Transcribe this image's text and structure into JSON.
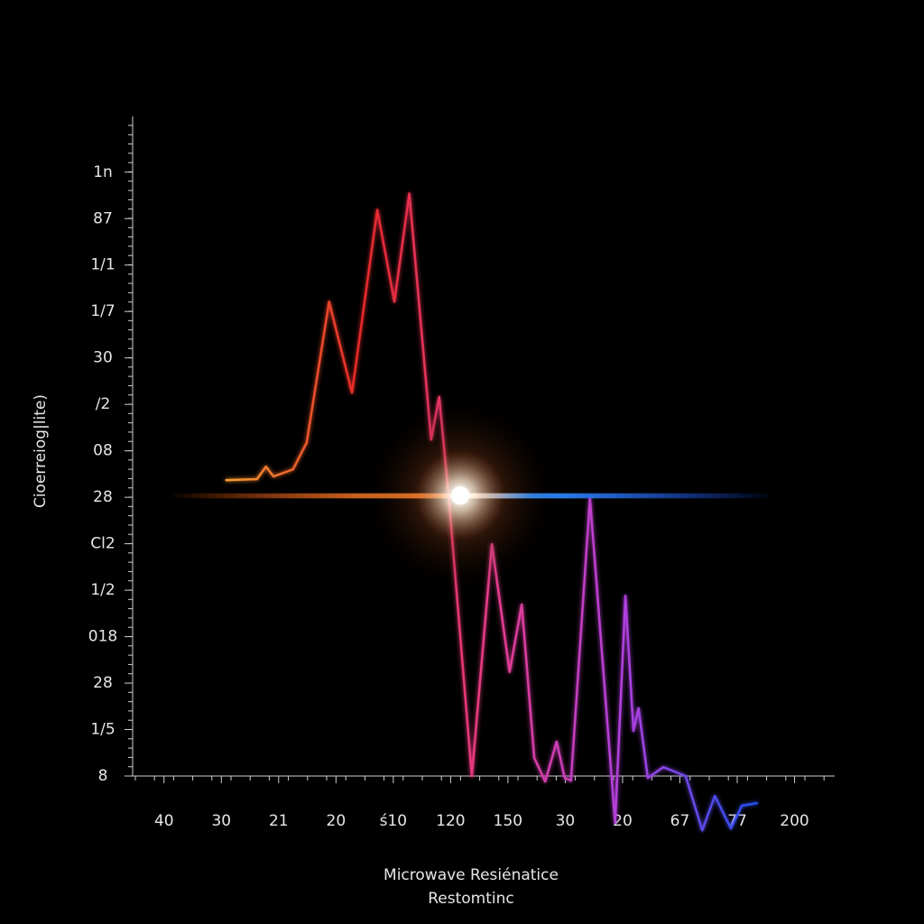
{
  "chart_data": {
    "type": "line",
    "y_label": "Cioerreiog|lite)",
    "x_label": "Microwave Resiénatice",
    "x_label_2": "Restomtinc",
    "xlim": [
      -0.5,
      11.7
    ],
    "ylim": [
      0,
      14.2
    ],
    "xticks": [
      {
        "value": 0,
        "label": "40"
      },
      {
        "value": 1,
        "label": "30"
      },
      {
        "value": 2,
        "label": "21"
      },
      {
        "value": 3,
        "label": "20"
      },
      {
        "value": 4,
        "label": "ś10"
      },
      {
        "value": 5,
        "label": "120"
      },
      {
        "value": 6,
        "label": "150"
      },
      {
        "value": 7,
        "label": "30"
      },
      {
        "value": 8,
        "label": "20"
      },
      {
        "value": 9,
        "label": "67"
      },
      {
        "value": 10,
        "label": "77"
      },
      {
        "value": 11,
        "label": "200"
      }
    ],
    "yticks": [
      {
        "value": 0,
        "label": "8"
      },
      {
        "value": 1,
        "label": "1/5"
      },
      {
        "value": 2,
        "label": "28"
      },
      {
        "value": 3,
        "label": "018"
      },
      {
        "value": 4,
        "label": "1/2"
      },
      {
        "value": 5,
        "label": "Cl2"
      },
      {
        "value": 6,
        "label": "28"
      },
      {
        "value": 7,
        "label": "08"
      },
      {
        "value": 8,
        "label": "/2"
      },
      {
        "value": 9,
        "label": "30"
      },
      {
        "value": 10,
        "label": "1/7"
      },
      {
        "value": 11,
        "label": "1/1"
      },
      {
        "value": 12,
        "label": "87"
      },
      {
        "value": 13,
        "label": "1n"
      }
    ],
    "colors": [
      "#f5a030",
      "#e82828",
      "#e83c8c",
      "#b040e0",
      "#2050f0"
    ],
    "x": [
      1.07,
      1.62,
      1.78,
      1.91,
      2.25,
      2.49,
      2.88,
      3.28,
      3.72,
      4.02,
      4.28,
      4.66,
      4.8,
      4.96,
      5.37,
      5.72,
      6.03,
      6.24,
      6.46,
      6.65,
      6.85,
      6.99,
      7.1,
      7.43,
      7.87,
      8.05,
      8.19,
      8.28,
      8.44,
      8.71,
      9.1,
      9.39,
      9.61,
      9.89,
      10.08,
      10.36
    ],
    "values": [
      6.37,
      6.39,
      6.66,
      6.45,
      6.6,
      7.18,
      10.21,
      8.25,
      12.19,
      10.21,
      12.54,
      7.24,
      8.16,
      6.12,
      0,
      4.99,
      2.24,
      3.69,
      0.39,
      -0.12,
      0.74,
      -0.04,
      -0.1,
      5.98,
      -1.01,
      3.88,
      0.97,
      1.46,
      -0.04,
      0.19,
      0,
      -1.17,
      -0.43,
      -1.13,
      -0.64,
      -0.58
    ]
  }
}
